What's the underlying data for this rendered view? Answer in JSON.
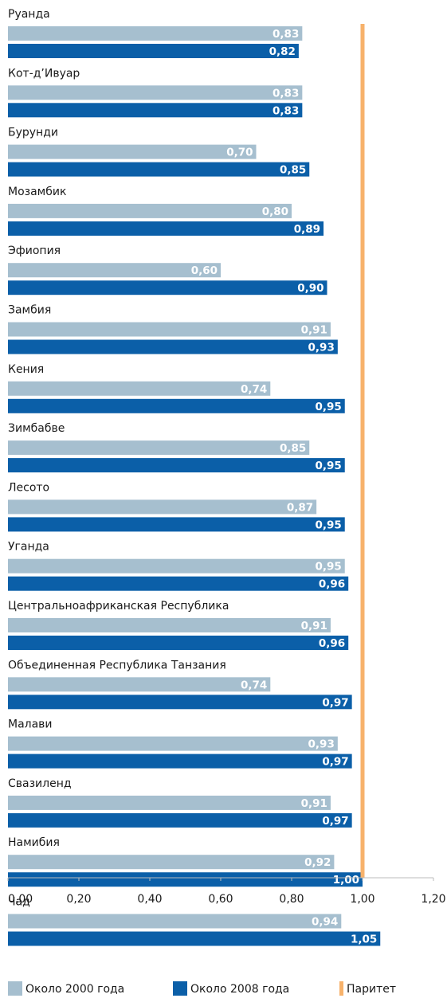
{
  "chart_data": {
    "type": "bar",
    "orientation": "horizontal",
    "categories": [
      "Руанда",
      "Кот-д’Ивуар",
      "Бурунди",
      "Мозамбик",
      "Эфиопия",
      "Замбия",
      "Кения",
      "Зимбабве",
      "Лесото",
      "Уганда",
      "Центральноафриканская Республика",
      "Объединенная Республика Танзания",
      "Малави",
      "Свазиленд",
      "Намибия",
      "Чад"
    ],
    "series": [
      {
        "name": "Около 2000 года",
        "color": "#a6bfcf",
        "values": [
          0.83,
          0.83,
          0.7,
          0.8,
          0.6,
          0.91,
          0.74,
          0.85,
          0.87,
          0.95,
          0.91,
          0.74,
          0.93,
          0.91,
          0.92,
          0.94
        ],
        "value_labels": [
          "0,83",
          "0,83",
          "0,70",
          "0,80",
          "0,60",
          "0,91",
          "0,74",
          "0,85",
          "0,87",
          "0,95",
          "0,91",
          "0,74",
          "0,93",
          "0,91",
          "0,92",
          "0,94"
        ]
      },
      {
        "name": "Около 2008 года",
        "color": "#0b5fa8",
        "values": [
          0.82,
          0.83,
          0.85,
          0.89,
          0.9,
          0.93,
          0.95,
          0.95,
          0.95,
          0.96,
          0.96,
          0.97,
          0.97,
          0.97,
          1.0,
          1.05
        ],
        "value_labels": [
          "0,82",
          "0,83",
          "0,85",
          "0,89",
          "0,90",
          "0,93",
          "0,95",
          "0,95",
          "0,95",
          "0,96",
          "0,96",
          "0,97",
          "0,97",
          "0,97",
          "1,00",
          "1,05"
        ]
      }
    ],
    "reference_line": {
      "name": "Паритет",
      "value": 1.0,
      "color": "#f7b26b"
    },
    "xlim": [
      0,
      1.2
    ],
    "xticks": [
      {
        "value": 0,
        "label": "0,00"
      },
      {
        "value": 0.2,
        "label": "0,20"
      },
      {
        "value": 0.4,
        "label": "0,40"
      },
      {
        "value": 0.6,
        "label": "0,60"
      },
      {
        "value": 0.8,
        "label": "0,80"
      },
      {
        "value": 1.0,
        "label": "1,00"
      },
      {
        "value": 1.2,
        "label": "1,20"
      }
    ],
    "legend": "bottom"
  }
}
